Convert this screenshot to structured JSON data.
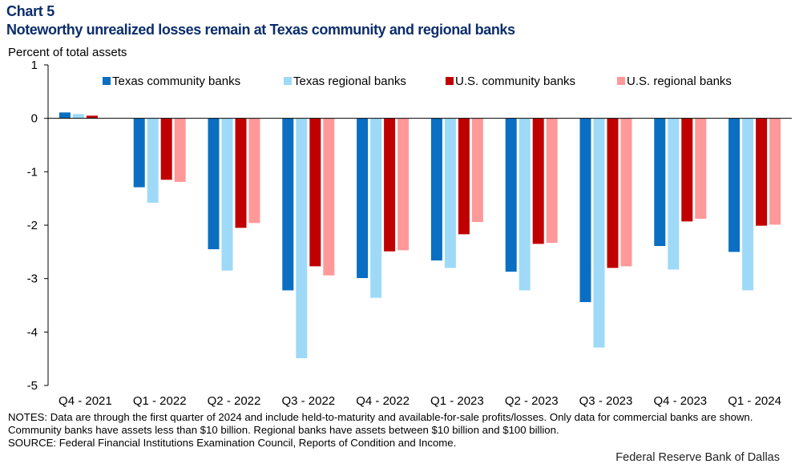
{
  "header": {
    "chart_label": "Chart 5",
    "title": "Noteworthy unrealized losses remain at Texas community and regional banks"
  },
  "chart_data": {
    "type": "bar",
    "title": "Noteworthy unrealized losses remain at Texas community and regional banks",
    "ylabel": "Percent of total assets",
    "xlabel": "",
    "ylim": [
      -5,
      1
    ],
    "yticks": [
      1,
      0,
      -1,
      -2,
      -3,
      -4,
      -5
    ],
    "legend_position": "top",
    "categories": [
      "Q4 - 2021",
      "Q1 - 2022",
      "Q2 - 2022",
      "Q3 - 2022",
      "Q4 - 2022",
      "Q1 - 2023",
      "Q2 - 2023",
      "Q3 - 2023",
      "Q4 - 2023",
      "Q1 - 2024"
    ],
    "series": [
      {
        "name": "Texas community banks",
        "color": "#0a6fc2",
        "values": [
          0.11,
          -1.29,
          -2.45,
          -3.22,
          -2.99,
          -2.66,
          -2.87,
          -3.44,
          -2.39,
          -2.5
        ]
      },
      {
        "name": "Texas regional banks",
        "color": "#9edaf7",
        "values": [
          0.08,
          -1.58,
          -2.85,
          -4.49,
          -3.36,
          -2.8,
          -3.22,
          -4.29,
          -2.83,
          -3.22
        ]
      },
      {
        "name": "U.S. community banks",
        "color": "#c00000",
        "values": [
          0.05,
          -1.15,
          -2.05,
          -2.77,
          -2.49,
          -2.17,
          -2.35,
          -2.8,
          -1.93,
          -2.01
        ]
      },
      {
        "name": "U.S. regional banks",
        "color": "#ff9999",
        "values": [
          0.0,
          -1.19,
          -1.96,
          -2.94,
          -2.47,
          -1.94,
          -2.33,
          -2.77,
          -1.88,
          -1.99
        ]
      }
    ]
  },
  "footer": {
    "notes": "NOTES: Data are through the first quarter of 2024 and include held-to-maturity and available-for-sale profits/losses. Only data for commercial banks are shown. Community banks have assets less than $10 billion. Regional banks have assets between $10 billion and $100 billion.",
    "source": "SOURCE: Federal Financial Institutions Examination Council, Reports of Condition and Income.",
    "credit": "Federal Reserve Bank of Dallas"
  }
}
